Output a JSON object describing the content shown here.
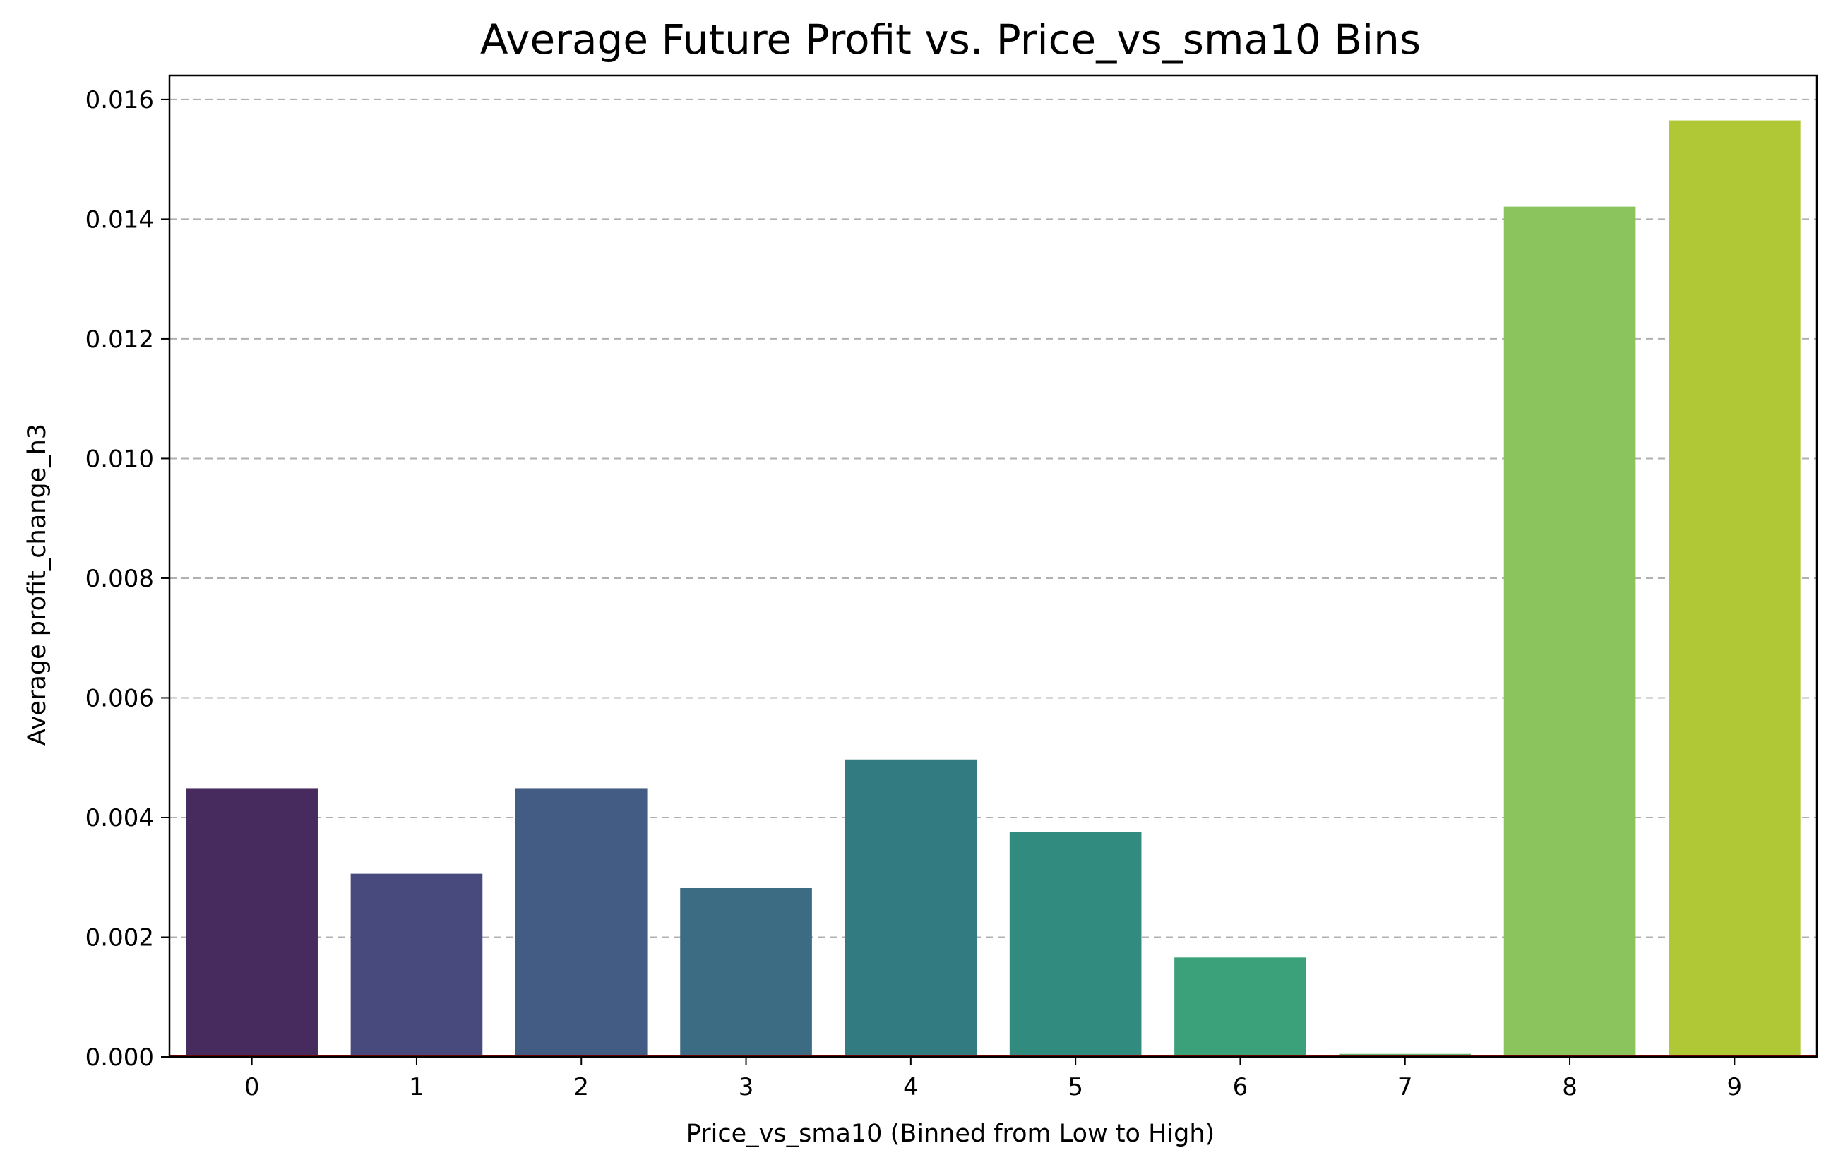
{
  "chart_data": {
    "type": "bar",
    "title": "Average Future Profit vs. Price_vs_sma10 Bins",
    "xlabel": "Price_vs_sma10 (Binned from Low to High)",
    "ylabel": "Average profit_change_h3",
    "categories": [
      "0",
      "1",
      "2",
      "3",
      "4",
      "5",
      "6",
      "7",
      "8",
      "9"
    ],
    "values": [
      0.00449,
      0.00306,
      0.00449,
      0.00282,
      0.00497,
      0.00376,
      0.00166,
      5e-05,
      0.01421,
      0.01565
    ],
    "colors": [
      "#472A5E",
      "#484A7E",
      "#435C83",
      "#3B6C84",
      "#327B81",
      "#318B7E",
      "#3AA17A",
      "#5ABA6E",
      "#8BC45D",
      "#B0C835"
    ],
    "ylim": [
      0,
      0.0164
    ],
    "yticks": [
      "0.000",
      "0.002",
      "0.004",
      "0.006",
      "0.008",
      "0.010",
      "0.012",
      "0.014",
      "0.016"
    ],
    "ytick_values": [
      0,
      0.002,
      0.004,
      0.006,
      0.008,
      0.01,
      0.012,
      0.014,
      0.016
    ],
    "grid": "y-dashed",
    "baseline_color": "#8B0000"
  }
}
